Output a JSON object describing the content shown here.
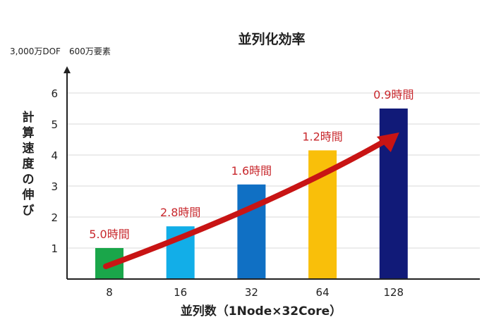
{
  "chart_data": {
    "type": "bar",
    "title": "並列化効率",
    "subtitle": "3,000万DOF　600万要素",
    "xlabel": "並列数（1Node×32Core）",
    "ylabel": "計算速度の伸び",
    "categories": [
      "8",
      "16",
      "32",
      "64",
      "128"
    ],
    "values": [
      1.0,
      1.7,
      3.05,
      4.15,
      5.5
    ],
    "data_labels": [
      "5.0時間",
      "2.8時間",
      "1.6時間",
      "1.2時間",
      "0.9時間"
    ],
    "bar_colors": [
      "#1aa64a",
      "#12aee8",
      "#1070c4",
      "#f9bf0a",
      "#111a78"
    ],
    "label_color": "#c8282d",
    "arrow_color": "#c81414",
    "ylim": [
      0,
      6.5
    ],
    "yticks": [
      1,
      2,
      3,
      4,
      5,
      6
    ],
    "grid": true,
    "legend": "none"
  }
}
